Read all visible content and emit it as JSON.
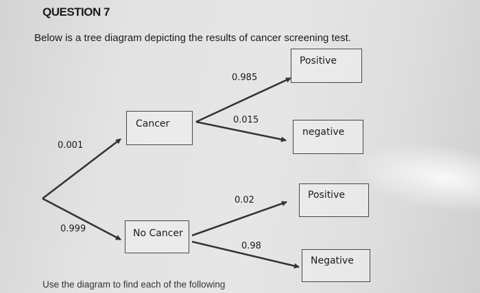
{
  "question": {
    "title": "QUESTION 7",
    "intro": "Below is a tree diagram depicting the results of  cancer screening test.",
    "footer": "Use the diagram to find each of the following"
  },
  "tree": {
    "nodes": {
      "cancer": "Cancer",
      "no_cancer": "No Cancer",
      "cancer_positive": "Positive",
      "cancer_negative": "negative",
      "no_cancer_positive": "Positive",
      "no_cancer_negative": "Negative"
    },
    "probabilities": {
      "cancer": "0.001",
      "no_cancer": "0.999",
      "cancer_positive": "0.985",
      "cancer_negative": "0.015",
      "no_cancer_positive": "0.02",
      "no_cancer_negative": "0.98"
    }
  }
}
